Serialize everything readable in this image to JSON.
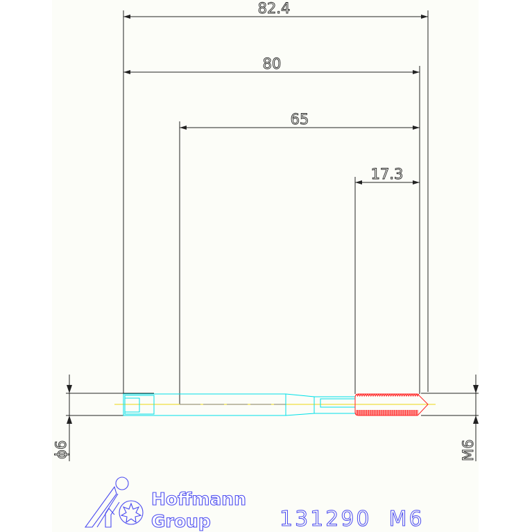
{
  "dimensions": {
    "overall_length": "82.4",
    "length": "80",
    "shank_to_tip": "65",
    "thread_length": "17.3",
    "shank_diameter": "ϕ6",
    "thread_size": "M6"
  },
  "logo": {
    "line1": "Hoffmann",
    "line2": "Group"
  },
  "part_label": "131290  M6",
  "colors": {
    "body": "#00e0e8",
    "thread": "#ff2020",
    "centerline": "#f0e040",
    "dimension": "#222222",
    "logo": "#4a4af0"
  }
}
